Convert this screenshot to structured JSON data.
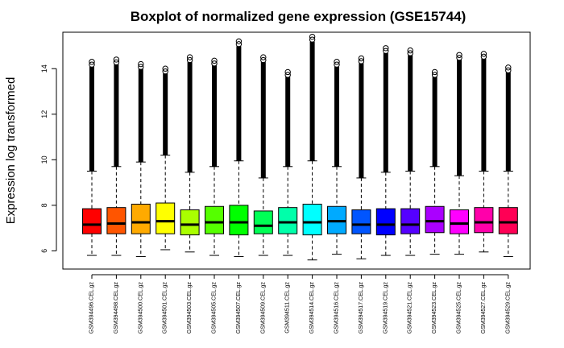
{
  "chart_data": {
    "type": "boxplot",
    "title": "Boxplot of normalized gene expression (GSE15744)",
    "xlabel": "",
    "ylabel": "Expression log transformed",
    "ylim": [
      5.2,
      15.6
    ],
    "yticks": [
      6,
      8,
      10,
      12,
      14
    ],
    "grid": false,
    "legend": "none",
    "categories": [
      "GSM394496.CEL.gz",
      "GSM394498.CEL.gz",
      "GSM394500.CEL.gz",
      "GSM394501.CEL.gz",
      "GSM394503.CEL.gz",
      "GSM394505.CEL.gz",
      "GSM394507.CEL.gz",
      "GSM394509.CEL.gz",
      "GSM394511.CEL.gz",
      "GSM394514.CEL.gz",
      "GSM394516.CEL.gz",
      "GSM394517.CEL.gz",
      "GSM394519.CEL.gz",
      "GSM394521.CEL.gz",
      "GSM394523.CEL.gz",
      "GSM394525.CEL.gz",
      "GSM394527.CEL.gz",
      "GSM394529.CEL.gz"
    ],
    "colors": [
      "#FF0000",
      "#FF5500",
      "#FFAA00",
      "#FFFF00",
      "#AAFF00",
      "#55FF00",
      "#00FF00",
      "#00FF55",
      "#00FFAA",
      "#00FFFF",
      "#00AAFF",
      "#0055FF",
      "#0000FF",
      "#5500FF",
      "#AA00FF",
      "#FF00FF",
      "#FF00AA",
      "#FF0055"
    ],
    "boxes": [
      {
        "min": 5.8,
        "q1": 6.75,
        "median": 7.15,
        "q3": 7.85,
        "max": 9.5,
        "outlier_max": 14.3
      },
      {
        "min": 5.8,
        "q1": 6.75,
        "median": 7.2,
        "q3": 7.9,
        "max": 9.7,
        "outlier_max": 14.4
      },
      {
        "min": 5.75,
        "q1": 6.75,
        "median": 7.25,
        "q3": 8.05,
        "max": 9.9,
        "outlier_max": 14.2
      },
      {
        "min": 6.05,
        "q1": 6.75,
        "median": 7.3,
        "q3": 8.1,
        "max": 10.2,
        "outlier_max": 14.0
      },
      {
        "min": 5.95,
        "q1": 6.7,
        "median": 7.15,
        "q3": 7.8,
        "max": 9.45,
        "outlier_max": 14.5
      },
      {
        "min": 5.8,
        "q1": 6.75,
        "median": 7.25,
        "q3": 7.95,
        "max": 9.7,
        "outlier_max": 14.35
      },
      {
        "min": 5.75,
        "q1": 6.7,
        "median": 7.25,
        "q3": 8.0,
        "max": 9.95,
        "outlier_max": 15.2
      },
      {
        "min": 5.8,
        "q1": 6.75,
        "median": 7.1,
        "q3": 7.75,
        "max": 9.2,
        "outlier_max": 14.5
      },
      {
        "min": 5.8,
        "q1": 6.75,
        "median": 7.25,
        "q3": 7.9,
        "max": 9.7,
        "outlier_max": 13.85
      },
      {
        "min": 5.6,
        "q1": 6.7,
        "median": 7.25,
        "q3": 8.05,
        "max": 9.95,
        "outlier_max": 15.4
      },
      {
        "min": 5.85,
        "q1": 6.75,
        "median": 7.3,
        "q3": 7.95,
        "max": 9.7,
        "outlier_max": 14.3
      },
      {
        "min": 5.65,
        "q1": 6.75,
        "median": 7.15,
        "q3": 7.8,
        "max": 9.2,
        "outlier_max": 14.45
      },
      {
        "min": 5.8,
        "q1": 6.7,
        "median": 7.15,
        "q3": 7.85,
        "max": 9.45,
        "outlier_max": 14.9
      },
      {
        "min": 5.8,
        "q1": 6.75,
        "median": 7.15,
        "q3": 7.85,
        "max": 9.5,
        "outlier_max": 14.8
      },
      {
        "min": 5.85,
        "q1": 6.8,
        "median": 7.3,
        "q3": 7.95,
        "max": 9.7,
        "outlier_max": 13.85
      },
      {
        "min": 5.85,
        "q1": 6.75,
        "median": 7.2,
        "q3": 7.8,
        "max": 9.3,
        "outlier_max": 14.6
      },
      {
        "min": 5.95,
        "q1": 6.8,
        "median": 7.25,
        "q3": 7.9,
        "max": 9.5,
        "outlier_max": 14.65
      },
      {
        "min": 5.75,
        "q1": 6.75,
        "median": 7.25,
        "q3": 7.9,
        "max": 9.5,
        "outlier_max": 14.05
      }
    ]
  }
}
